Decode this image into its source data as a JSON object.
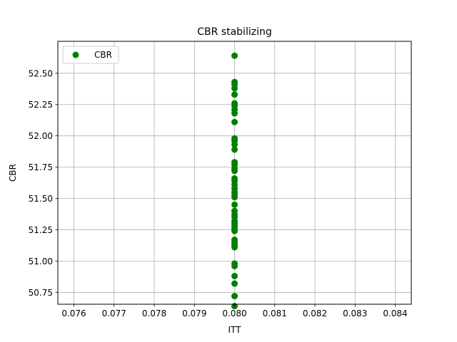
{
  "chart_data": {
    "type": "scatter",
    "title": "CBR stabilizing",
    "xlabel": "ITT",
    "ylabel": "CBR",
    "xlim": [
      0.0756,
      0.0844
    ],
    "ylim": [
      50.655,
      52.755
    ],
    "xticks": [
      0.076,
      0.077,
      0.078,
      0.079,
      0.08,
      0.081,
      0.082,
      0.083,
      0.084
    ],
    "xtick_labels": [
      "0.076",
      "0.077",
      "0.078",
      "0.079",
      "0.080",
      "0.081",
      "0.082",
      "0.083",
      "0.084"
    ],
    "yticks": [
      50.75,
      51.0,
      51.25,
      51.5,
      51.75,
      52.0,
      52.25,
      52.5
    ],
    "ytick_labels": [
      "50.75",
      "51.00",
      "51.25",
      "51.50",
      "51.75",
      "52.00",
      "52.25",
      "52.50"
    ],
    "grid": true,
    "legend_position": "top-left",
    "series": [
      {
        "name": "CBR",
        "color": "#008000",
        "marker": "circle",
        "points": [
          [
            0.08,
            52.64
          ],
          [
            0.08,
            52.43
          ],
          [
            0.08,
            52.41
          ],
          [
            0.08,
            52.38
          ],
          [
            0.08,
            52.33
          ],
          [
            0.08,
            52.26
          ],
          [
            0.08,
            52.24
          ],
          [
            0.08,
            52.21
          ],
          [
            0.08,
            52.18
          ],
          [
            0.08,
            52.11
          ],
          [
            0.08,
            51.98
          ],
          [
            0.08,
            51.96
          ],
          [
            0.08,
            51.93
          ],
          [
            0.08,
            51.89
          ],
          [
            0.08,
            51.79
          ],
          [
            0.08,
            51.77
          ],
          [
            0.08,
            51.74
          ],
          [
            0.08,
            51.72
          ],
          [
            0.08,
            51.66
          ],
          [
            0.08,
            51.64
          ],
          [
            0.08,
            51.61
          ],
          [
            0.08,
            51.58
          ],
          [
            0.08,
            51.55
          ],
          [
            0.08,
            51.53
          ],
          [
            0.08,
            51.51
          ],
          [
            0.08,
            51.45
          ],
          [
            0.08,
            51.4
          ],
          [
            0.08,
            51.37
          ],
          [
            0.08,
            51.35
          ],
          [
            0.08,
            51.32
          ],
          [
            0.08,
            51.3
          ],
          [
            0.08,
            51.28
          ],
          [
            0.08,
            51.26
          ],
          [
            0.08,
            51.24
          ],
          [
            0.08,
            51.17
          ],
          [
            0.08,
            51.15
          ],
          [
            0.08,
            51.13
          ],
          [
            0.08,
            51.11
          ],
          [
            0.08,
            50.98
          ],
          [
            0.08,
            50.96
          ],
          [
            0.08,
            50.88
          ],
          [
            0.08,
            50.82
          ],
          [
            0.08,
            50.72
          ],
          [
            0.08,
            50.64
          ]
        ]
      }
    ]
  }
}
